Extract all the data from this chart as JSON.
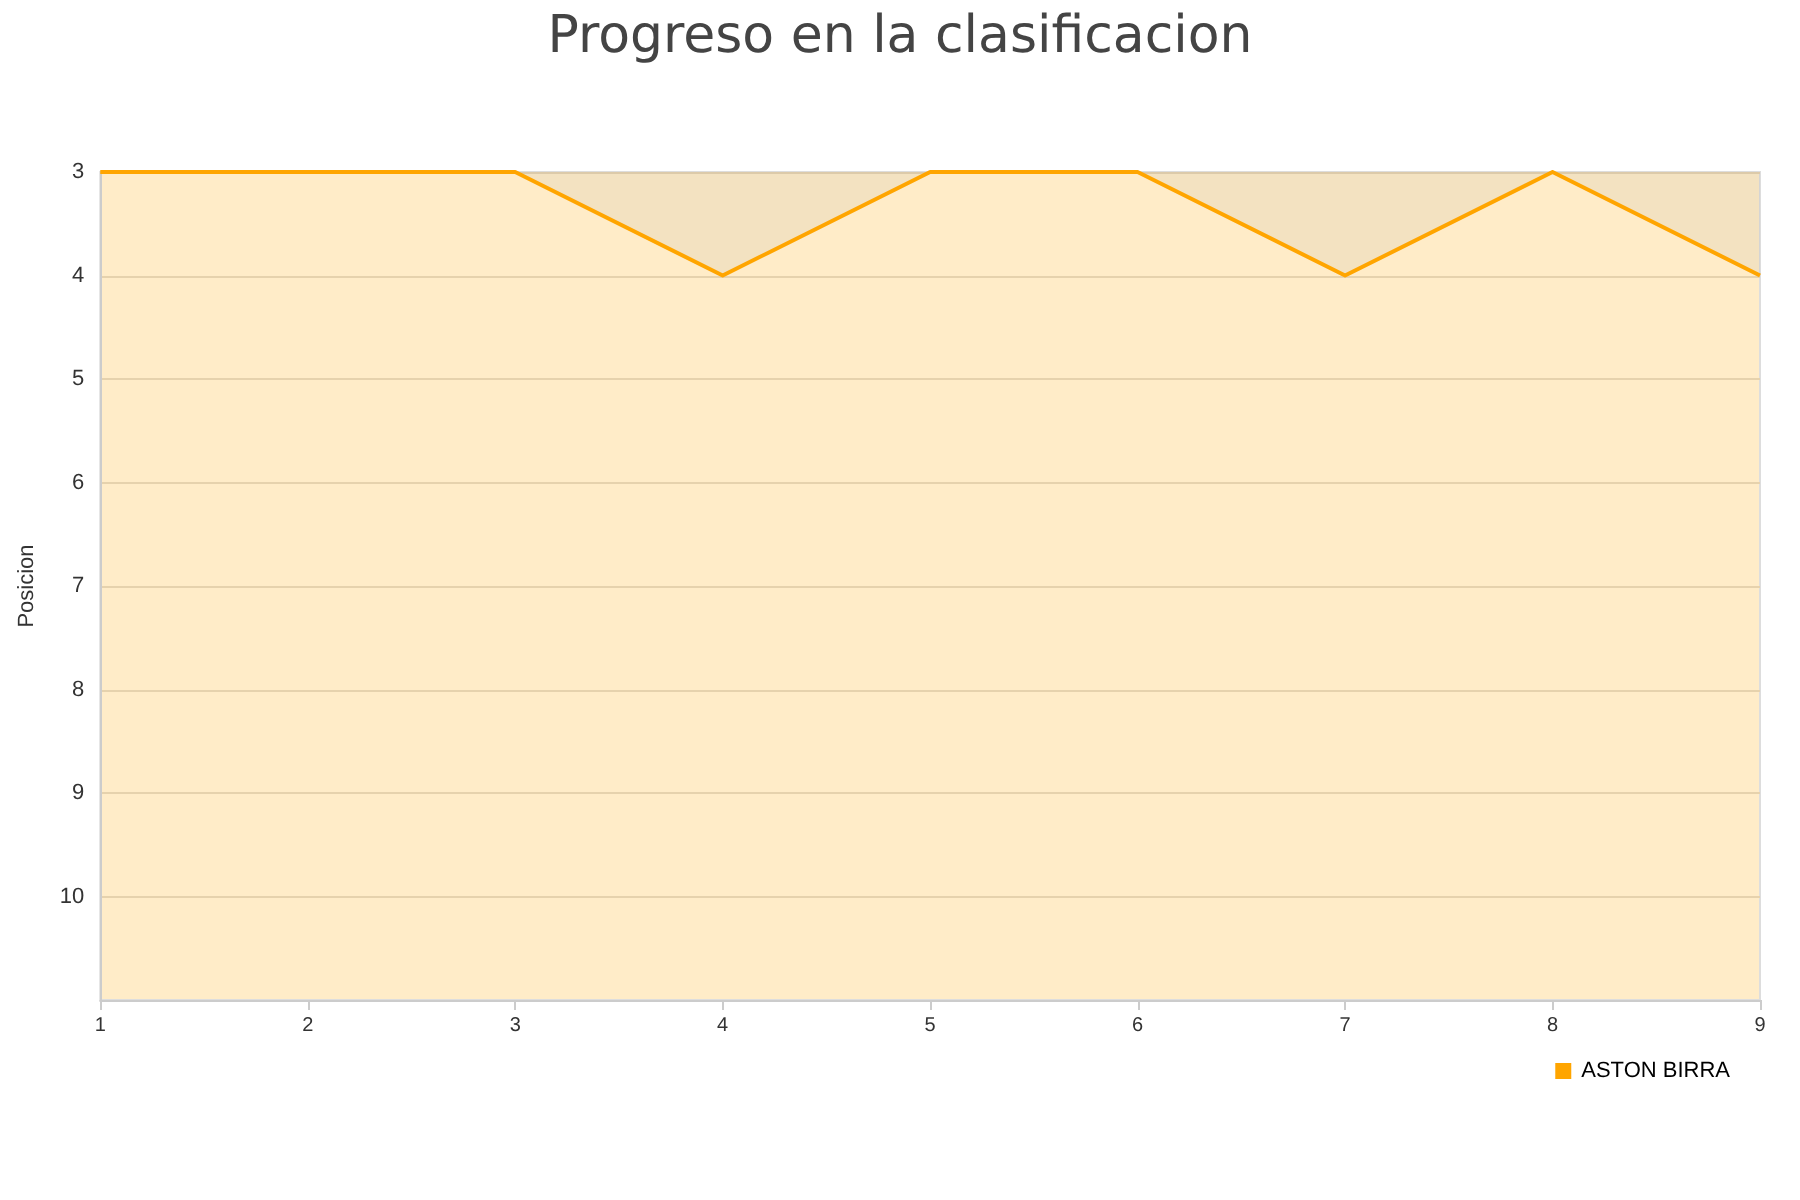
{
  "chart_data": {
    "type": "area",
    "title": "Progreso en la clasificacion",
    "ylabel": "Posicion",
    "x": [
      1,
      2,
      3,
      4,
      5,
      6,
      7,
      8,
      9
    ],
    "series": [
      {
        "name": "ASTON BIRRA",
        "color": "#ffa500",
        "values": [
          3,
          3,
          3,
          4,
          3,
          3,
          4,
          3,
          4
        ]
      }
    ],
    "xlim": [
      1,
      9
    ],
    "xticks": [
      1,
      2,
      3,
      4,
      5,
      6,
      7,
      8,
      9
    ],
    "ylim": [
      11,
      3
    ],
    "yticks": [
      3,
      4,
      5,
      6,
      7,
      8,
      9,
      10
    ],
    "grid": "y",
    "legend": "bottom right",
    "marker": "none"
  }
}
